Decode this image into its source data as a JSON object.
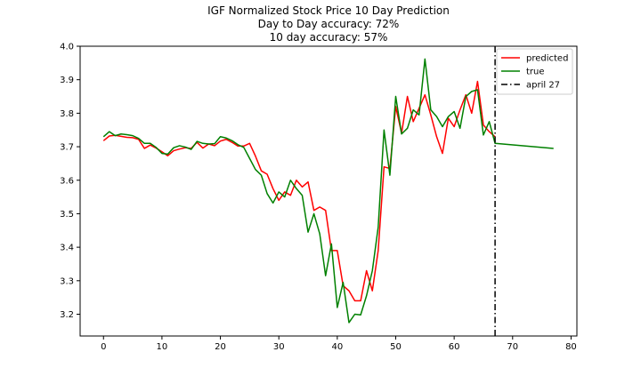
{
  "chart_data": {
    "type": "line",
    "title_lines": [
      "IGF Normalized Stock Price 10 Day Prediction",
      "Day to Day accuracy: 72%",
      "10 day accuracy: 57%"
    ],
    "xlim": [
      -4,
      81
    ],
    "ylim": [
      3.135,
      4.0
    ],
    "x_ticks": [
      0,
      10,
      20,
      30,
      40,
      50,
      60,
      70,
      80
    ],
    "y_ticks": [
      3.2,
      3.3,
      3.4,
      3.5,
      3.6,
      3.7,
      3.8,
      3.9,
      4.0
    ],
    "grid": false,
    "legend_position": "top-right",
    "series": [
      {
        "name": "predicted",
        "color": "#ff0000",
        "x": [
          0,
          1,
          2,
          3,
          4,
          5,
          6,
          7,
          8,
          9,
          10,
          11,
          12,
          13,
          14,
          15,
          16,
          17,
          18,
          19,
          20,
          21,
          22,
          23,
          24,
          25,
          26,
          27,
          28,
          29,
          30,
          31,
          32,
          33,
          34,
          35,
          36,
          37,
          38,
          39,
          40,
          41,
          42,
          43,
          44,
          45,
          46,
          47,
          48,
          49,
          50,
          51,
          52,
          53,
          54,
          55,
          56,
          57,
          58,
          59,
          60,
          61,
          62,
          63,
          64,
          65,
          66,
          67
        ],
        "values": [
          3.718,
          3.732,
          3.734,
          3.731,
          3.728,
          3.727,
          3.722,
          3.695,
          3.705,
          3.696,
          3.685,
          3.673,
          3.688,
          3.693,
          3.697,
          3.695,
          3.713,
          3.696,
          3.708,
          3.703,
          3.717,
          3.722,
          3.713,
          3.702,
          3.702,
          3.71,
          3.672,
          3.628,
          3.618,
          3.575,
          3.54,
          3.565,
          3.555,
          3.6,
          3.58,
          3.595,
          3.51,
          3.52,
          3.51,
          3.39,
          3.39,
          3.285,
          3.27,
          3.24,
          3.24,
          3.33,
          3.27,
          3.39,
          3.64,
          3.635,
          3.82,
          3.74,
          3.85,
          3.775,
          3.815,
          3.855,
          3.795,
          3.73,
          3.68,
          3.785,
          3.76,
          3.81,
          3.855,
          3.8,
          3.895,
          3.765,
          3.745,
          3.73
        ]
      },
      {
        "name": "true",
        "color": "#008000",
        "x": [
          0,
          1,
          2,
          3,
          4,
          5,
          6,
          7,
          8,
          9,
          10,
          11,
          12,
          13,
          14,
          15,
          16,
          17,
          18,
          19,
          20,
          21,
          22,
          23,
          24,
          25,
          26,
          27,
          28,
          29,
          30,
          31,
          32,
          33,
          34,
          35,
          36,
          37,
          38,
          39,
          40,
          41,
          42,
          43,
          44,
          45,
          46,
          47,
          48,
          49,
          50,
          51,
          52,
          53,
          54,
          55,
          56,
          57,
          58,
          59,
          60,
          61,
          62,
          63,
          64,
          65,
          66,
          67,
          77
        ],
        "values": [
          3.73,
          3.745,
          3.733,
          3.738,
          3.736,
          3.733,
          3.725,
          3.71,
          3.71,
          3.698,
          3.68,
          3.678,
          3.697,
          3.703,
          3.699,
          3.692,
          3.716,
          3.71,
          3.708,
          3.709,
          3.73,
          3.726,
          3.718,
          3.706,
          3.698,
          3.665,
          3.632,
          3.615,
          3.56,
          3.532,
          3.565,
          3.55,
          3.6,
          3.575,
          3.555,
          3.445,
          3.5,
          3.44,
          3.315,
          3.41,
          3.22,
          3.295,
          3.175,
          3.2,
          3.198,
          3.255,
          3.33,
          3.46,
          3.75,
          3.615,
          3.85,
          3.738,
          3.755,
          3.81,
          3.795,
          3.962,
          3.81,
          3.79,
          3.76,
          3.79,
          3.805,
          3.755,
          3.85,
          3.865,
          3.87,
          3.735,
          3.775,
          3.71,
          3.695
        ]
      }
    ],
    "vline": {
      "name": "april 27",
      "x": 67,
      "color": "#000000"
    }
  }
}
